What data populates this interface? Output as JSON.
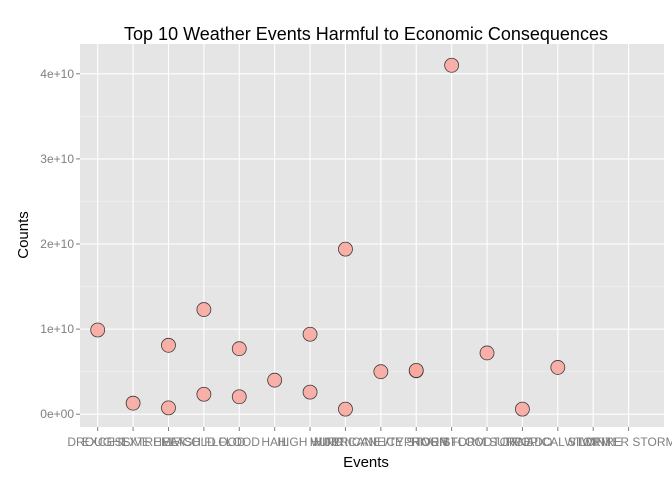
{
  "chart_data": {
    "type": "scatter",
    "title": "Top 10 Weather Events Harmful to Economic Consequences",
    "xlabel": "Events",
    "ylabel": "Counts",
    "categories": [
      "DROUGHT",
      "EXCESSIVE HEAT",
      "EXTREME COLD",
      "FLASH FLOOD",
      "FLOOD",
      "HAIL",
      "HIGH WIND",
      "HURRICANE",
      "HURRICANE/TYPHOON",
      "ICE STORM",
      "RIVER FLOOD",
      "STORM SURGE",
      "TORNADO",
      "TROPICAL STORM",
      "WILDFIRE",
      "WINTER STORM"
    ],
    "ylim": [
      -1500000000.0,
      43500000000.0
    ],
    "yticks": [
      0,
      10000000000.0,
      20000000000.0,
      30000000000.0,
      40000000000.0
    ],
    "ytick_labels": [
      "0e+00",
      "1e+10",
      "2e+10",
      "3e+10",
      "4e+10"
    ],
    "grid": true,
    "points": [
      {
        "x": "DROUGHT",
        "y": 9900000000.0
      },
      {
        "x": "EXCESSIVE HEAT",
        "y": 1300000000.0
      },
      {
        "x": "EXTREME COLD",
        "y": 8100000000.0
      },
      {
        "x": "EXTREME COLD",
        "y": 750000000.0
      },
      {
        "x": "FLASH FLOOD",
        "y": 12300000000.0
      },
      {
        "x": "FLASH FLOOD",
        "y": 2350000000.0
      },
      {
        "x": "FLOOD",
        "y": 7700000000.0
      },
      {
        "x": "FLOOD",
        "y": 2050000000.0
      },
      {
        "x": "HAIL",
        "y": 4000000000.0
      },
      {
        "x": "HIGH WIND",
        "y": 9400000000.0
      },
      {
        "x": "HIGH WIND",
        "y": 2600000000.0
      },
      {
        "x": "HURRICANE",
        "y": 19400000000.0
      },
      {
        "x": "HURRICANE",
        "y": 600000000.0
      },
      {
        "x": "HURRICANE/TYPHOON",
        "y": 5000000000.0
      },
      {
        "x": "ICE STORM",
        "y": 5100000000.0
      },
      {
        "x": "ICE STORM",
        "y": 5150000000.0
      },
      {
        "x": "RIVER FLOOD",
        "y": 41000000000.0
      },
      {
        "x": "STORM SURGE",
        "y": 7200000000.0
      },
      {
        "x": "TORNADO",
        "y": 600000000.0
      },
      {
        "x": "TROPICAL STORM",
        "y": 5500000000.0
      }
    ]
  }
}
